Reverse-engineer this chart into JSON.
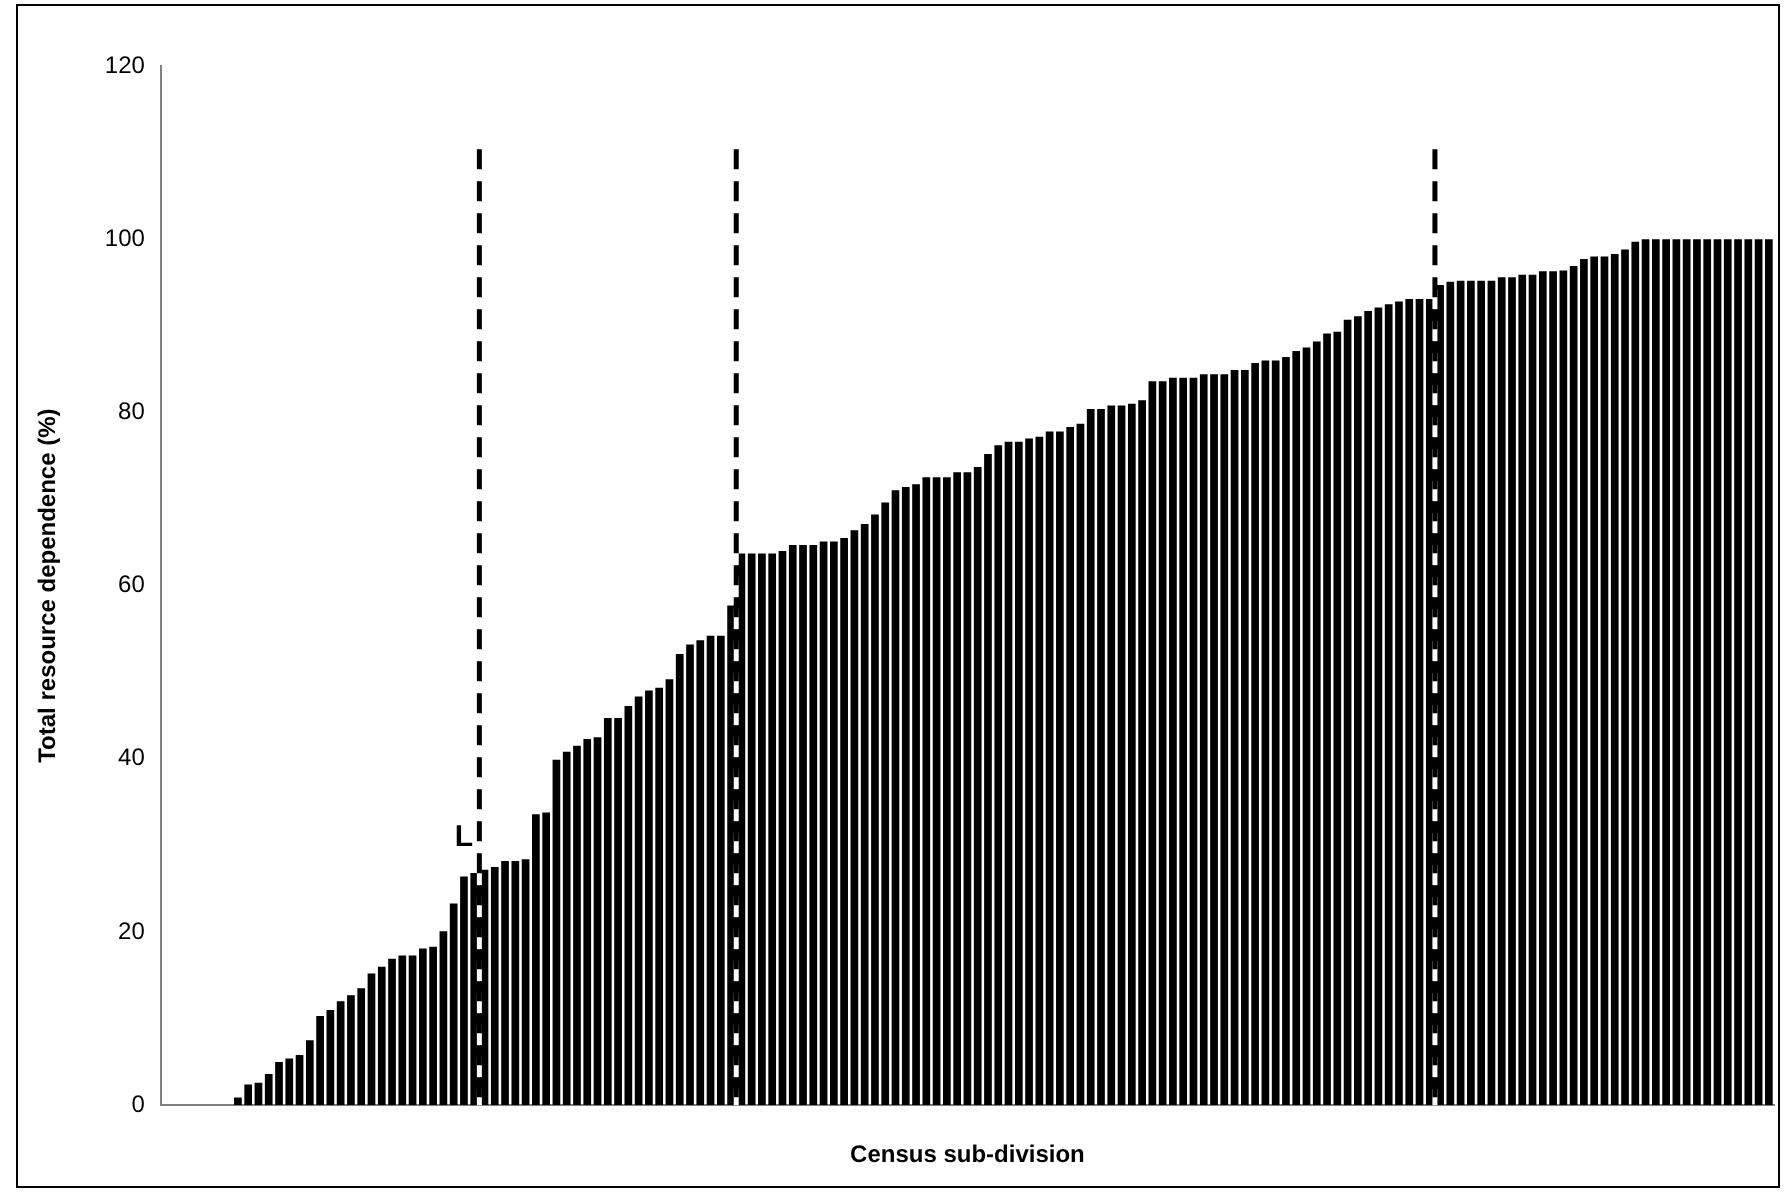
{
  "chart_data": {
    "type": "bar",
    "xlabel": "Census sub-division",
    "ylabel": "Total resource dependence (%)",
    "categories": [
      null,
      null,
      null,
      null,
      null,
      null,
      null,
      null,
      null,
      null,
      null,
      null,
      null,
      null,
      null,
      null,
      null,
      null,
      null,
      null,
      null,
      null,
      null,
      null,
      null,
      null,
      null,
      null,
      null,
      null,
      null,
      null,
      null,
      null,
      null,
      null,
      null,
      null,
      null,
      null,
      null,
      null,
      null,
      null,
      null,
      null,
      null,
      null,
      null,
      null,
      null,
      null,
      null,
      null,
      null,
      null,
      null,
      null,
      null,
      null,
      null,
      null,
      null,
      null,
      null,
      null,
      null,
      null,
      null,
      null,
      null,
      null,
      null,
      null,
      null,
      null,
      null,
      null,
      null,
      null,
      null,
      null,
      null,
      null,
      null,
      null,
      null,
      null,
      null,
      null,
      null,
      null,
      null,
      null,
      null,
      null,
      null,
      null,
      null,
      null,
      null,
      null,
      null,
      null,
      null,
      null,
      null,
      null,
      null,
      null,
      null,
      null,
      null,
      null,
      null,
      null,
      null,
      null,
      null,
      null,
      null,
      null,
      null,
      null,
      null,
      null,
      null,
      null,
      null,
      null,
      null,
      null,
      null,
      null,
      null,
      null,
      null,
      null,
      null,
      null,
      null,
      null,
      null,
      null,
      null,
      null,
      null,
      null,
      null,
      null,
      null,
      null,
      null,
      null,
      null,
      null,
      null
    ],
    "values": [
      0,
      0,
      0,
      0,
      0,
      0,
      0,
      0.9,
      2.4,
      2.6,
      3.6,
      5.0,
      5.4,
      5.8,
      7.5,
      10.3,
      11.0,
      12.0,
      12.7,
      13.5,
      15.2,
      16.0,
      16.9,
      17.3,
      17.3,
      18.1,
      18.3,
      20.1,
      23.3,
      26.4,
      26.8,
      27.2,
      27.5,
      28.2,
      28.2,
      28.4,
      33.6,
      33.8,
      39.9,
      40.8,
      41.5,
      42.3,
      42.5,
      44.7,
      44.7,
      46.1,
      47.2,
      47.9,
      48.2,
      49.2,
      52.1,
      53.2,
      53.7,
      54.2,
      54.2,
      57.7,
      63.7,
      63.7,
      63.7,
      63.7,
      64.0,
      64.7,
      64.7,
      64.7,
      65.1,
      65.1,
      65.5,
      66.4,
      67.1,
      68.2,
      69.6,
      71.0,
      71.4,
      71.7,
      72.5,
      72.5,
      72.5,
      73.1,
      73.1,
      73.7,
      75.2,
      76.2,
      76.6,
      76.6,
      77.0,
      77.2,
      77.8,
      77.8,
      78.3,
      78.7,
      80.4,
      80.4,
      80.8,
      80.8,
      81.0,
      81.4,
      83.6,
      83.6,
      84.0,
      84.0,
      84.0,
      84.4,
      84.4,
      84.4,
      84.9,
      84.9,
      85.7,
      86.0,
      86.0,
      86.4,
      87.1,
      87.5,
      88.2,
      89.1,
      89.3,
      90.7,
      91.1,
      91.7,
      92.1,
      92.5,
      92.8,
      93.1,
      93.1,
      93.1,
      94.7,
      95.1,
      95.2,
      95.2,
      95.2,
      95.2,
      95.6,
      95.6,
      95.9,
      95.9,
      96.3,
      96.3,
      96.4,
      96.9,
      97.7,
      98.0,
      98.0,
      98.3,
      98.8,
      99.7,
      100,
      100,
      100,
      100,
      100,
      100,
      100,
      100,
      100,
      100,
      100,
      100,
      100
    ],
    "color": "#000000",
    "ylim": [
      0,
      120
    ],
    "yticks": [
      0,
      20,
      40,
      60,
      80,
      100,
      120
    ],
    "grid": false,
    "legend": false,
    "annotations": [
      "L"
    ]
  }
}
